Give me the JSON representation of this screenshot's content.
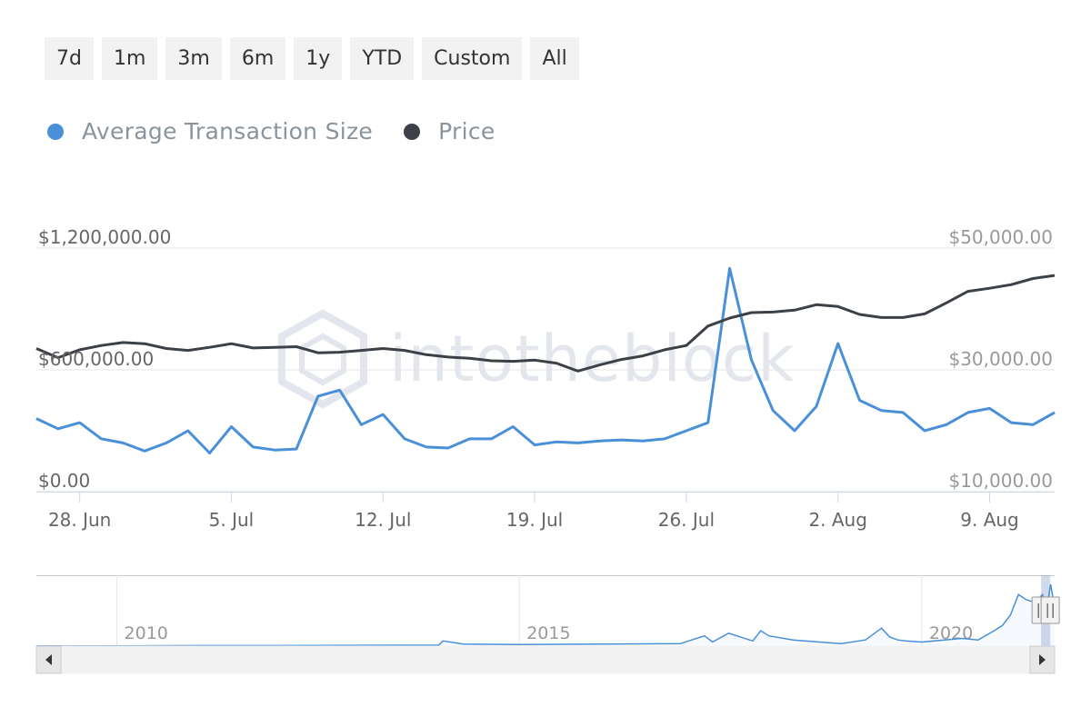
{
  "range_buttons": [
    "7d",
    "1m",
    "3m",
    "6m",
    "1y",
    "YTD",
    "Custom",
    "All"
  ],
  "watermark": "intotheblock",
  "colors": {
    "avg_tx_size": "#4a90d9",
    "price": "#3c4147",
    "grid": "#e6e6e6",
    "axis_text": "#666666",
    "right_axis_text": "#999999",
    "navigator_mask": "rgba(102,133,194,0.3)"
  },
  "chart_data": [
    {
      "type": "line",
      "legend": [
        "Average Transaction Size",
        "Price"
      ],
      "legend_position": "top-left",
      "grid": true,
      "x_start": "2021-06-26",
      "x_end": "2021-08-12",
      "x_ticks": [
        {
          "date": "2021-06-28",
          "label": "28. Jun"
        },
        {
          "date": "2021-07-05",
          "label": "5. Jul"
        },
        {
          "date": "2021-07-12",
          "label": "12. Jul"
        },
        {
          "date": "2021-07-19",
          "label": "19. Jul"
        },
        {
          "date": "2021-07-26",
          "label": "26. Jul"
        },
        {
          "date": "2021-08-02",
          "label": "2. Aug"
        },
        {
          "date": "2021-08-09",
          "label": "9. Aug"
        }
      ],
      "y_left": {
        "min": 0,
        "max": 1200000,
        "ticks": [
          {
            "value": 0,
            "label": "$0.00"
          },
          {
            "value": 600000,
            "label": "$600,000.00"
          },
          {
            "value": 1200000,
            "label": "$1,200,000.00"
          }
        ]
      },
      "y_right": {
        "min": 10000,
        "max": 50000,
        "ticks": [
          {
            "value": 10000,
            "label": "$10,000.00"
          },
          {
            "value": 30000,
            "label": "$30,000.00"
          },
          {
            "value": 50000,
            "label": "$50,000.00"
          }
        ]
      },
      "dates": [
        "2021-06-26",
        "2021-06-27",
        "2021-06-28",
        "2021-06-29",
        "2021-06-30",
        "2021-07-01",
        "2021-07-02",
        "2021-07-03",
        "2021-07-04",
        "2021-07-05",
        "2021-07-06",
        "2021-07-07",
        "2021-07-08",
        "2021-07-09",
        "2021-07-10",
        "2021-07-11",
        "2021-07-12",
        "2021-07-13",
        "2021-07-14",
        "2021-07-15",
        "2021-07-16",
        "2021-07-17",
        "2021-07-18",
        "2021-07-19",
        "2021-07-20",
        "2021-07-21",
        "2021-07-22",
        "2021-07-23",
        "2021-07-24",
        "2021-07-25",
        "2021-07-26",
        "2021-07-27",
        "2021-07-28",
        "2021-07-29",
        "2021-07-30",
        "2021-07-31",
        "2021-08-01",
        "2021-08-02",
        "2021-08-03",
        "2021-08-04",
        "2021-08-05",
        "2021-08-06",
        "2021-08-07",
        "2021-08-08",
        "2021-08-09",
        "2021-08-10",
        "2021-08-11",
        "2021-08-12"
      ],
      "series": [
        {
          "name": "Average Transaction Size",
          "axis": "left",
          "values": [
            360000,
            310000,
            340000,
            260000,
            240000,
            200000,
            240000,
            300000,
            190000,
            320000,
            220000,
            205000,
            210000,
            470000,
            500000,
            330000,
            380000,
            260000,
            220000,
            215000,
            260000,
            260000,
            320000,
            230000,
            245000,
            240000,
            250000,
            255000,
            250000,
            260000,
            300000,
            340000,
            1100000,
            650000,
            400000,
            300000,
            420000,
            730000,
            450000,
            400000,
            390000,
            300000,
            330000,
            390000,
            410000,
            340000,
            330000,
            390000
          ]
        },
        {
          "name": "Price",
          "axis": "right",
          "values": [
            33500,
            32000,
            33300,
            34000,
            34500,
            34300,
            33500,
            33200,
            33700,
            34300,
            33600,
            33700,
            33800,
            32800,
            32900,
            33200,
            33500,
            33200,
            32500,
            32100,
            31900,
            31500,
            31400,
            31600,
            31100,
            29800,
            30800,
            31700,
            32300,
            33300,
            34000,
            37200,
            38500,
            39400,
            39500,
            39800,
            40700,
            40400,
            39100,
            38600,
            38600,
            39200,
            41000,
            42900,
            43400,
            44000,
            45000,
            45500
          ]
        }
      ]
    },
    {
      "type": "area",
      "role": "navigator",
      "x_labels": [
        "2010",
        "2015",
        "2020"
      ],
      "x_start_year": 2009.0,
      "x_end_year": 2021.65,
      "selected_range": [
        "2021-06-26",
        "2021-08-12"
      ],
      "series": [
        {
          "years": [
            2009.0,
            2010.0,
            2011.0,
            2012.0,
            2013.0,
            2014.0,
            2014.05,
            2014.3,
            2015.0,
            2016.0,
            2017.0,
            2017.3,
            2017.4,
            2017.6,
            2017.9,
            2018.0,
            2018.1,
            2018.4,
            2018.8,
            2019.0,
            2019.3,
            2019.5,
            2019.6,
            2019.7,
            2019.8,
            2020.0,
            2020.5,
            2020.7,
            2020.9,
            2021.0,
            2021.1,
            2021.15,
            2021.2,
            2021.3,
            2021.4,
            2021.5,
            2021.55,
            2021.6,
            2021.65
          ],
          "values": [
            0.001,
            0.005,
            0.01,
            0.01,
            0.015,
            0.02,
            0.1,
            0.04,
            0.03,
            0.04,
            0.05,
            0.2,
            0.08,
            0.25,
            0.1,
            0.3,
            0.2,
            0.12,
            0.07,
            0.05,
            0.12,
            0.35,
            0.18,
            0.12,
            0.1,
            0.08,
            0.15,
            0.12,
            0.3,
            0.4,
            0.6,
            0.8,
            1.0,
            0.9,
            0.85,
            1.0,
            0.7,
            1.2,
            0.75
          ]
        }
      ]
    }
  ]
}
